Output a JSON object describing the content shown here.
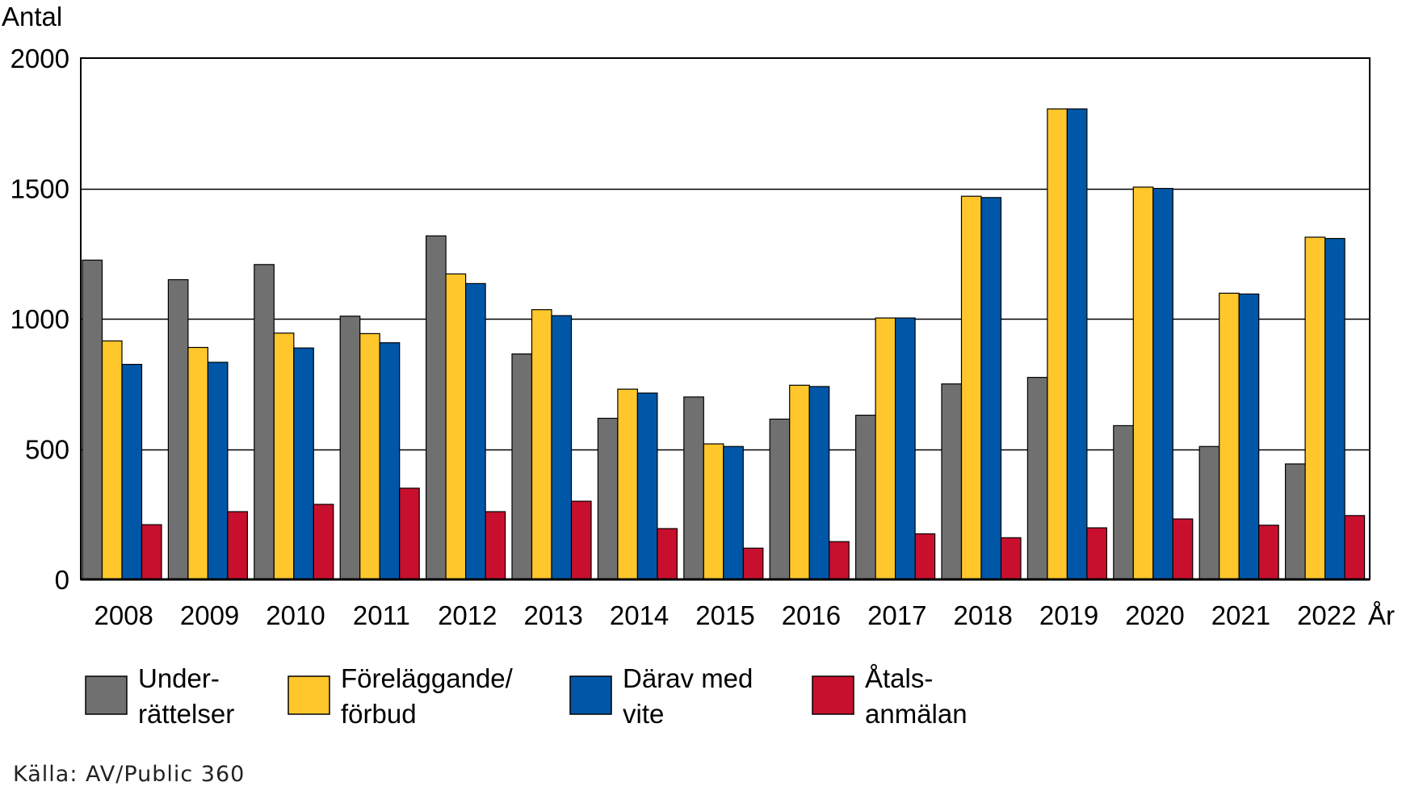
{
  "chart_data": {
    "type": "bar",
    "ylabel": "Antal",
    "xlabel": "År",
    "ylim": [
      0,
      2000
    ],
    "yticks": [
      0,
      500,
      1000,
      1500,
      2000
    ],
    "grid": "horizontal",
    "legend_position": "bottom",
    "categories": [
      "2008",
      "2009",
      "2010",
      "2011",
      "2012",
      "2013",
      "2014",
      "2015",
      "2016",
      "2017",
      "2018",
      "2019",
      "2020",
      "2021",
      "2022"
    ],
    "series": [
      {
        "name": "Under- rättelser",
        "legend_lines": [
          "Under-",
          "rättelser"
        ],
        "color": "#707070",
        "values": [
          1225,
          1150,
          1208,
          1010,
          1318,
          865,
          618,
          700,
          615,
          630,
          750,
          775,
          590,
          510,
          443
        ]
      },
      {
        "name": "Föreläggande/ förbud",
        "legend_lines": [
          "Föreläggande/",
          "förbud"
        ],
        "color": "#FFC72C",
        "values": [
          915,
          890,
          945,
          943,
          1172,
          1035,
          730,
          520,
          745,
          1003,
          1470,
          1805,
          1505,
          1098,
          1313
        ]
      },
      {
        "name": "Därav med vite",
        "legend_lines": [
          "Därav med",
          "vite"
        ],
        "color": "#0057A8",
        "values": [
          825,
          833,
          888,
          908,
          1135,
          1012,
          715,
          510,
          740,
          1003,
          1465,
          1805,
          1500,
          1095,
          1308
        ]
      },
      {
        "name": "Åtals- anmälan",
        "legend_lines": [
          "Åtals-",
          "anmälan"
        ],
        "color": "#C8102E",
        "values": [
          210,
          260,
          288,
          350,
          260,
          300,
          195,
          120,
          145,
          175,
          160,
          198,
          232,
          208,
          245
        ]
      }
    ]
  },
  "source": "Källa: AV/Public 360"
}
